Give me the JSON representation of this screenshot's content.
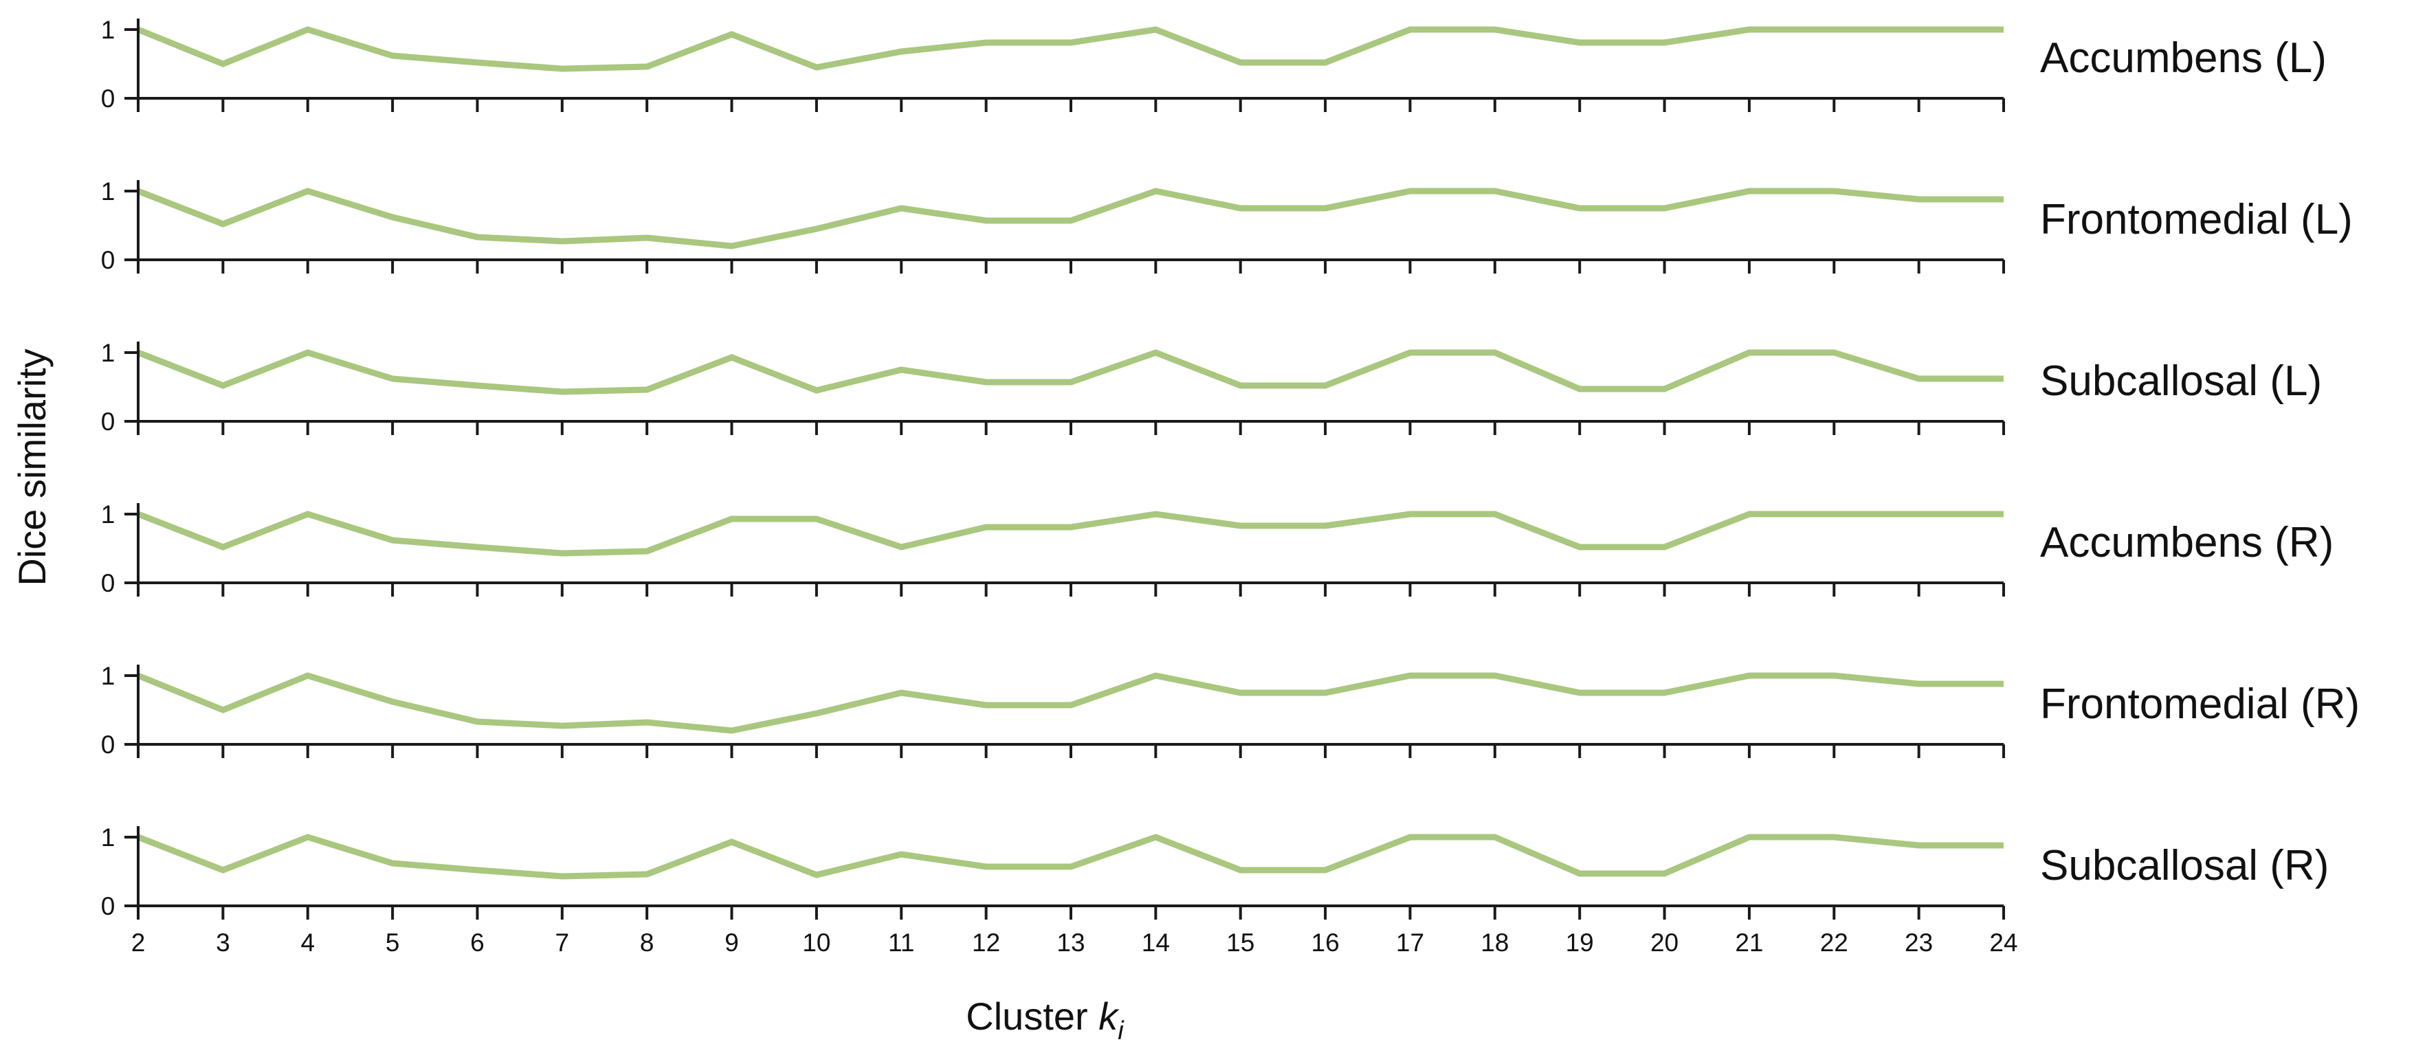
{
  "colors": {
    "series": "#a9c77e",
    "axis": "#1a1a1a",
    "text": "#111111"
  },
  "chart_data": {
    "type": "line",
    "xlabel_prefix": "Cluster ",
    "xlabel_var": "k",
    "xlabel_sub": "i",
    "ylabel": "Dice similarity",
    "x": [
      2,
      3,
      4,
      5,
      6,
      7,
      8,
      9,
      10,
      11,
      12,
      13,
      14,
      15,
      16,
      17,
      18,
      19,
      20,
      21,
      22,
      23,
      24
    ],
    "xlim": [
      2,
      24
    ],
    "ylim": [
      0,
      1
    ],
    "yticks": [
      0,
      1
    ],
    "grid": false,
    "legend": "none",
    "panels": [
      {
        "name": "Accumbens (L)",
        "values": [
          1.0,
          0.5,
          1.0,
          0.62,
          0.52,
          0.43,
          0.46,
          0.93,
          0.45,
          0.68,
          0.81,
          0.81,
          1.0,
          0.52,
          0.52,
          1.0,
          1.0,
          0.81,
          0.81,
          1.0,
          1.0,
          1.0,
          1.0
        ]
      },
      {
        "name": "Frontomedial (L)",
        "values": [
          1.0,
          0.52,
          1.0,
          0.62,
          0.33,
          0.27,
          0.32,
          0.2,
          0.45,
          0.75,
          0.57,
          0.57,
          1.0,
          0.75,
          0.75,
          1.0,
          1.0,
          0.75,
          0.75,
          1.0,
          1.0,
          0.88,
          0.88
        ]
      },
      {
        "name": "Subcallosal (L)",
        "values": [
          1.0,
          0.52,
          1.0,
          0.62,
          0.52,
          0.43,
          0.46,
          0.93,
          0.45,
          0.75,
          0.57,
          0.57,
          1.0,
          0.52,
          0.52,
          1.0,
          1.0,
          0.47,
          0.47,
          1.0,
          1.0,
          0.62,
          0.62
        ]
      },
      {
        "name": "Accumbens (R)",
        "values": [
          1.0,
          0.52,
          1.0,
          0.62,
          0.52,
          0.43,
          0.46,
          0.93,
          0.93,
          0.52,
          0.81,
          0.81,
          1.0,
          0.83,
          0.83,
          1.0,
          1.0,
          0.52,
          0.52,
          1.0,
          1.0,
          1.0,
          1.0
        ]
      },
      {
        "name": "Frontomedial (R)",
        "values": [
          1.0,
          0.5,
          1.0,
          0.62,
          0.33,
          0.27,
          0.32,
          0.2,
          0.45,
          0.75,
          0.57,
          0.57,
          1.0,
          0.75,
          0.75,
          1.0,
          1.0,
          0.75,
          0.75,
          1.0,
          1.0,
          0.88,
          0.88
        ]
      },
      {
        "name": "Subcallosal (R)",
        "values": [
          1.0,
          0.52,
          1.0,
          0.62,
          0.52,
          0.43,
          0.46,
          0.93,
          0.45,
          0.75,
          0.57,
          0.57,
          1.0,
          0.52,
          0.52,
          1.0,
          1.0,
          0.47,
          0.47,
          1.0,
          1.0,
          0.88,
          0.88
        ]
      }
    ]
  }
}
